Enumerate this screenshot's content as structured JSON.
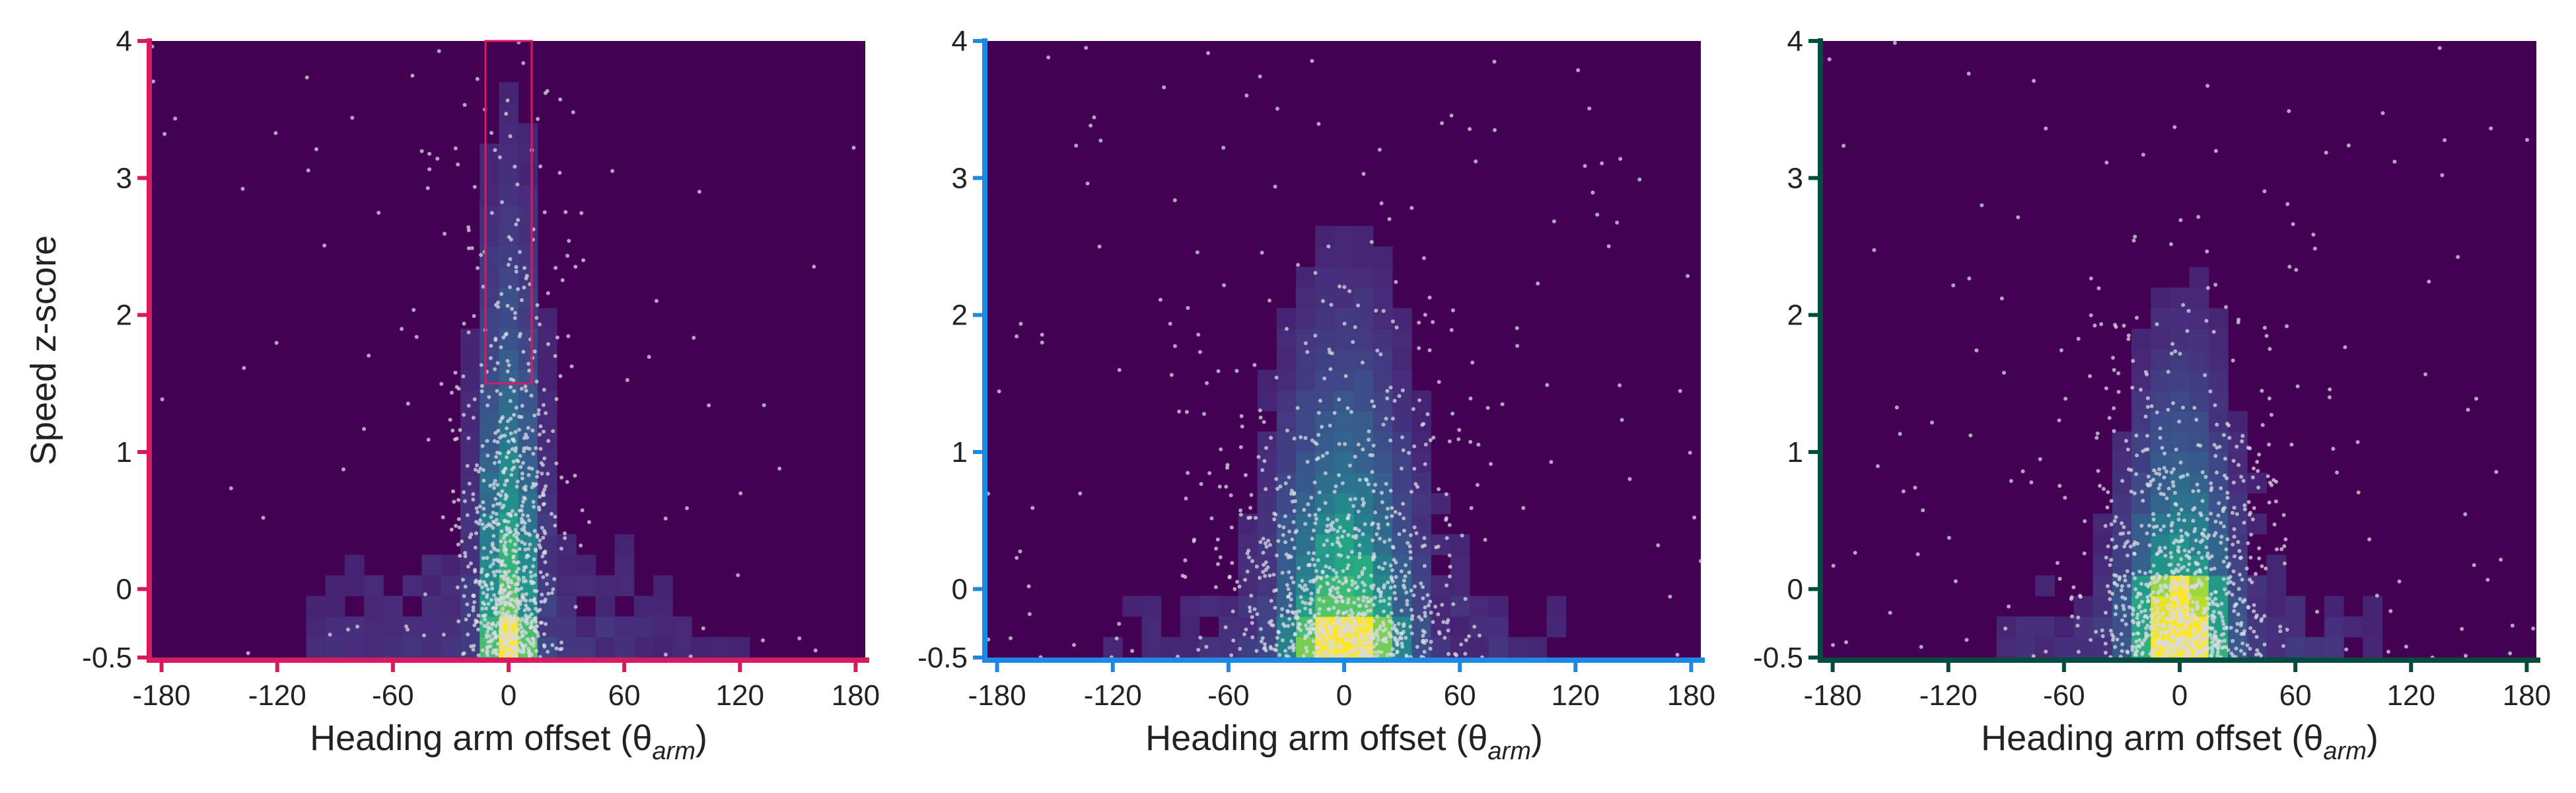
{
  "figure": {
    "ylabel": "Speed z-score",
    "heatmap_colors": {
      "background": "#440154",
      "low": "#472d7b",
      "mid_low": "#3b528b",
      "mid": "#2c728e",
      "teal": "#21918c",
      "green": "#28ae80",
      "light_green": "#5ec962",
      "lime": "#addc30",
      "yellow": "#fde725"
    },
    "point_color": "#d9d9e6"
  },
  "chart_data": [
    {
      "type": "heatmap",
      "name": "panel-1",
      "title": "",
      "accent_color": "#d81b60",
      "xlabel": "Heading arm offset (θ",
      "xlabel_sub": "arm",
      "xlabel_close": ")",
      "ylabel": "Speed z-score",
      "xlim": [
        -185,
        185
      ],
      "ylim": [
        -0.5,
        4
      ],
      "xticks": [
        -180,
        -120,
        -60,
        0,
        60,
        120,
        180
      ],
      "yticks": [
        -0.5,
        0,
        1,
        2,
        3,
        4
      ],
      "xtick_labels": [
        "-180",
        "-120",
        "-60",
        "0",
        "60",
        "120",
        "180"
      ],
      "ytick_labels": [
        "-0.5",
        "0",
        "1",
        "2",
        "3",
        "4"
      ],
      "highlight_box": {
        "x_range": [
          -12,
          12
        ],
        "y_range": [
          1.5,
          4
        ]
      },
      "density": {
        "center_x": 0,
        "spread_x_base": 10,
        "spread_x_growth": 2,
        "decay_y": 1.05,
        "peak_y": -0.45,
        "hotspot_y": [
          -0.5,
          -0.35
        ]
      },
      "points": {
        "count": 900,
        "center_x": 0,
        "spread_x": 16,
        "decay_y": 1.1,
        "outlier_fraction": 0.08
      }
    },
    {
      "type": "heatmap",
      "name": "panel-2",
      "title": "",
      "accent_color": "#1e88e5",
      "xlabel": "Heading arm offset (θ",
      "xlabel_sub": "arm",
      "xlabel_close": ")",
      "ylabel": "",
      "xlim": [
        -185,
        185
      ],
      "ylim": [
        -0.5,
        4
      ],
      "xticks": [
        -180,
        -120,
        -60,
        0,
        60,
        120,
        180
      ],
      "yticks": [
        -0.5,
        0,
        1,
        2,
        3,
        4
      ],
      "xtick_labels": [
        "-180",
        "-120",
        "-60",
        "0",
        "60",
        "120",
        "180"
      ],
      "ytick_labels": [
        "-0.5",
        "0",
        "1",
        "2",
        "3",
        "4"
      ],
      "highlight_box": null,
      "density": {
        "center_x": 0,
        "spread_x_base": 22,
        "spread_x_growth": 4,
        "decay_y": 0.8,
        "peak_y": -0.45,
        "hotspot_y": [
          -0.5,
          -0.38
        ]
      },
      "points": {
        "count": 1000,
        "center_x": 0,
        "spread_x": 38,
        "decay_y": 0.75,
        "outlier_fraction": 0.12
      }
    },
    {
      "type": "heatmap",
      "name": "panel-3",
      "title": "",
      "accent_color": "#004d40",
      "xlabel": "Heading arm offset (θ",
      "xlabel_sub": "arm",
      "xlabel_close": ")",
      "ylabel": "",
      "xlim": [
        -185,
        185
      ],
      "ylim": [
        -0.5,
        4
      ],
      "xticks": [
        -180,
        -120,
        -60,
        0,
        60,
        120,
        180
      ],
      "yticks": [
        -0.5,
        0,
        1,
        2,
        3,
        4
      ],
      "xtick_labels": [
        "-180",
        "-120",
        "-60",
        "0",
        "60",
        "120",
        "180"
      ],
      "ytick_labels": [
        "-0.5",
        "0",
        "1",
        "2",
        "3",
        "4"
      ],
      "highlight_box": null,
      "density": {
        "center_x": 0,
        "spread_x_base": 18,
        "spread_x_growth": 3,
        "decay_y": 0.7,
        "peak_y": -0.3,
        "hotspot_y": [
          -0.5,
          -0.05
        ]
      },
      "points": {
        "count": 1000,
        "center_x": 0,
        "spread_x": 30,
        "decay_y": 0.7,
        "outlier_fraction": 0.1
      }
    }
  ]
}
